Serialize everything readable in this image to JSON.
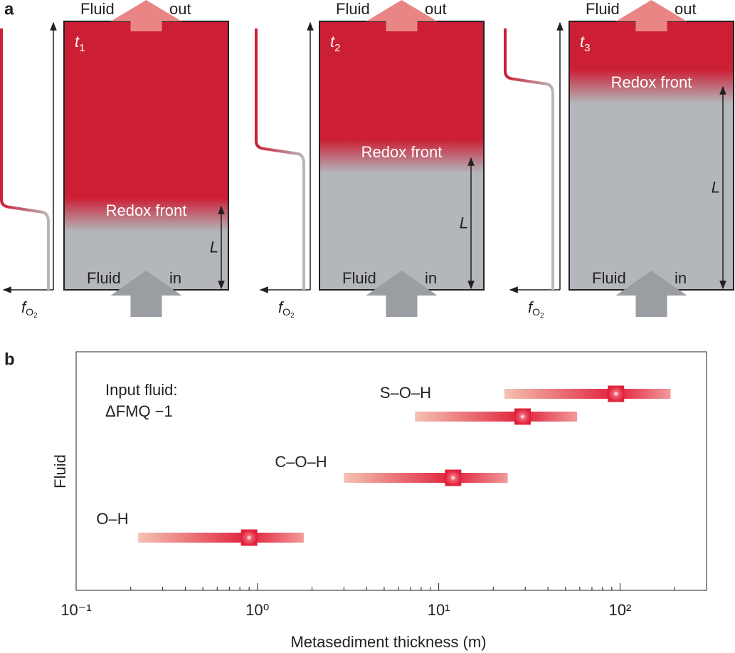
{
  "panel_a": {
    "label": "a",
    "panels": [
      {
        "time": "t",
        "time_sub": "1",
        "top_left": "Fluid",
        "top_right": "out",
        "front": "Redox front",
        "length": "L",
        "bottom_left": "Fluid",
        "bottom_right": "in",
        "axis": "f",
        "axis_sub": "O",
        "axis_sub2": "2"
      },
      {
        "time": "t",
        "time_sub": "2",
        "top_left": "Fluid",
        "top_right": "out",
        "front": "Redox front",
        "length": "L",
        "bottom_left": "Fluid",
        "bottom_right": "in",
        "axis": "f",
        "axis_sub": "O",
        "axis_sub2": "2"
      },
      {
        "time": "t",
        "time_sub": "3",
        "top_left": "Fluid",
        "top_right": "out",
        "front": "Redox front",
        "length": "L",
        "bottom_left": "Fluid",
        "bottom_right": "in",
        "axis": "f",
        "axis_sub": "O",
        "axis_sub2": "2"
      }
    ]
  },
  "chart_data": {
    "type": "range",
    "panel_label": "b",
    "x_label": "Metasediment thickness (m)",
    "y_label": "Fluid",
    "annotation": [
      "Input fluid:",
      "ΔFMQ −1"
    ],
    "xscale": "log",
    "xlim": [
      0.1,
      300
    ],
    "xticks": [
      {
        "value": 0.1,
        "label": "10⁻¹"
      },
      {
        "value": 1,
        "label": "10⁰"
      },
      {
        "value": 10,
        "label": "10¹"
      },
      {
        "value": 100,
        "label": "10²"
      }
    ],
    "minor_xticks": [
      0.2,
      0.3,
      0.4,
      0.5,
      0.6,
      0.7,
      0.8,
      0.9,
      2,
      3,
      4,
      5,
      6,
      7,
      8,
      9,
      20,
      30,
      40,
      50,
      60,
      70,
      80,
      90,
      200,
      300
    ],
    "color": "#e0203a",
    "series": [
      {
        "name": "S–O–H",
        "values": [
          95,
          29
        ],
        "low": [
          23,
          7.4
        ],
        "high": [
          190,
          58
        ]
      },
      {
        "name": "C–O–H",
        "values": [
          12
        ],
        "low": [
          3.0
        ],
        "high": [
          24
        ]
      },
      {
        "name": "O–H",
        "values": [
          0.9
        ],
        "low": [
          0.22
        ],
        "high": [
          1.8
        ]
      }
    ]
  }
}
